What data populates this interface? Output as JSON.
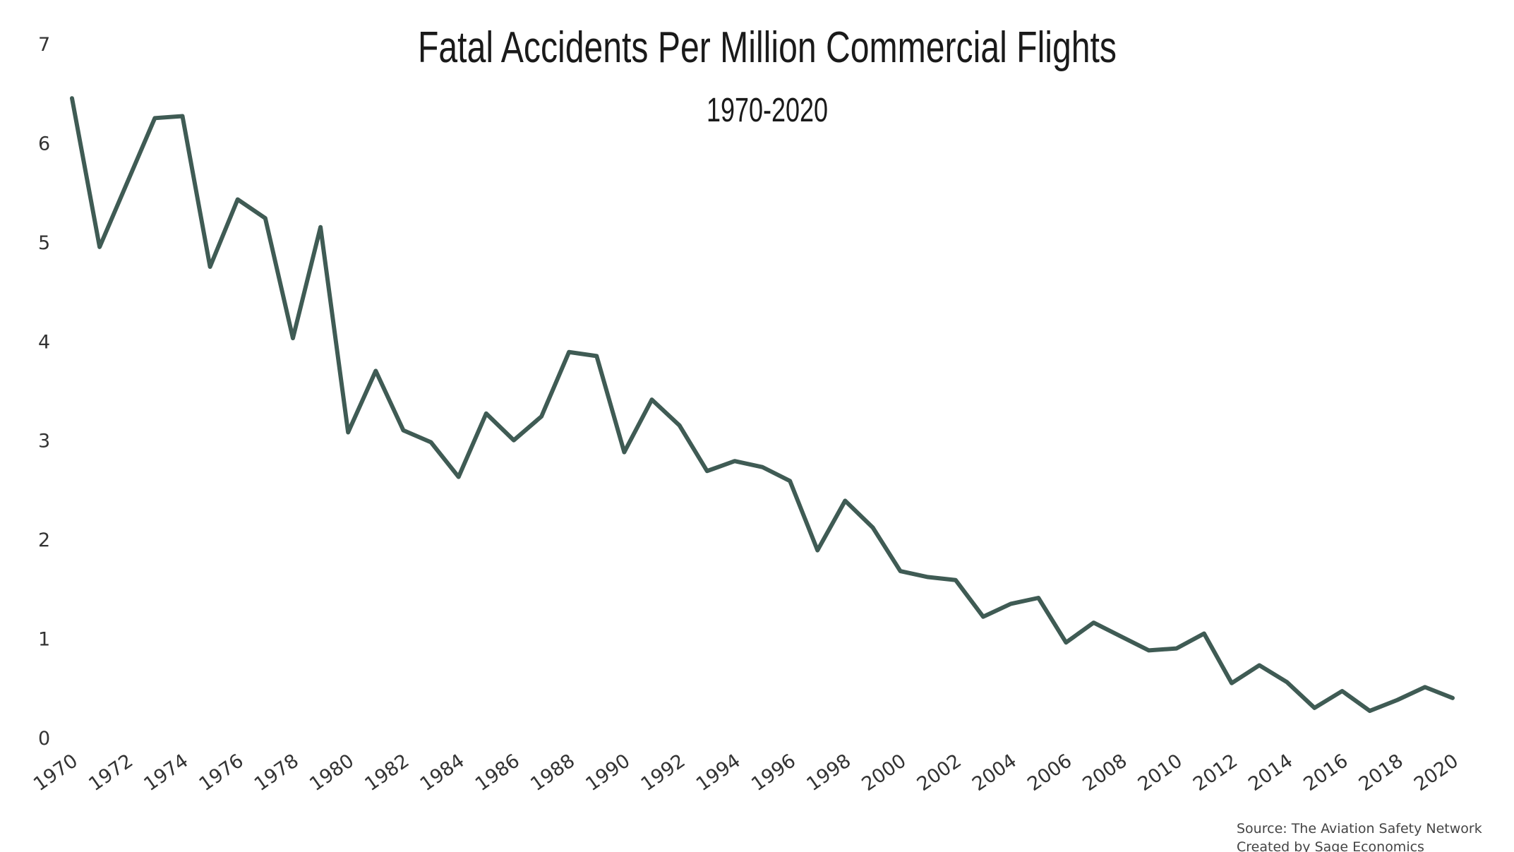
{
  "chart_data": {
    "type": "line",
    "title": "Fatal Accidents Per Million Commercial Flights",
    "subtitle": "1970-2020",
    "xlabel": "",
    "ylabel": "",
    "ylim": [
      0,
      7
    ],
    "xlim": [
      1970,
      2020
    ],
    "yticks": [
      "0",
      "1",
      "2",
      "3",
      "4",
      "5",
      "6",
      "7"
    ],
    "xticks": [
      "1970",
      "1972",
      "1974",
      "1976",
      "1978",
      "1980",
      "1982",
      "1984",
      "1986",
      "1988",
      "1990",
      "1992",
      "1994",
      "1996",
      "1998",
      "2000",
      "2002",
      "2004",
      "2006",
      "2008",
      "2010",
      "2012",
      "2014",
      "2016",
      "2018",
      "2020"
    ],
    "grid": false,
    "legend": "none",
    "line_color": "#3f5b54",
    "x": [
      1970,
      1971,
      1972,
      1973,
      1974,
      1975,
      1976,
      1977,
      1978,
      1979,
      1980,
      1981,
      1982,
      1983,
      1984,
      1985,
      1986,
      1987,
      1988,
      1989,
      1990,
      1991,
      1992,
      1993,
      1994,
      1995,
      1996,
      1997,
      1998,
      1999,
      2000,
      2001,
      2002,
      2003,
      2004,
      2005,
      2006,
      2007,
      2008,
      2009,
      2010,
      2011,
      2012,
      2013,
      2014,
      2015,
      2016,
      2017,
      2018,
      2019,
      2020
    ],
    "series": [
      {
        "values": [
          6.45,
          4.95,
          5.6,
          6.25,
          6.27,
          4.75,
          5.43,
          5.24,
          4.03,
          5.15,
          3.08,
          3.7,
          3.1,
          2.98,
          2.63,
          3.27,
          3.0,
          3.24,
          3.89,
          3.85,
          2.88,
          3.41,
          3.15,
          2.69,
          2.79,
          2.73,
          2.59,
          1.89,
          2.39,
          2.12,
          1.68,
          1.62,
          1.59,
          1.22,
          1.35,
          1.41,
          0.96,
          1.16,
          1.02,
          0.88,
          0.9,
          1.05,
          0.55,
          0.73,
          0.56,
          0.3,
          0.47,
          0.27,
          0.38,
          0.51,
          0.4
        ]
      }
    ]
  },
  "source": {
    "line1": "Source: The Aviation Safety Network",
    "line2": "Created by Sage Economics"
  }
}
